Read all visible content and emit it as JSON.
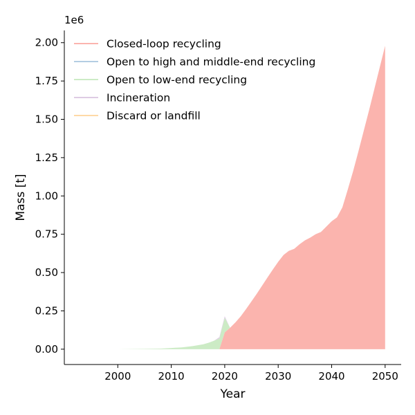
{
  "chart_data": {
    "type": "area",
    "title": "",
    "xlabel": "Year",
    "ylabel": "Mass [t]",
    "y_offset_label": "1e6",
    "xlim": [
      1990,
      2053
    ],
    "ylim": [
      -100000,
      2080000
    ],
    "x_ticks": [
      2000,
      2010,
      2020,
      2030,
      2040,
      2050
    ],
    "x_tick_labels": [
      "2000",
      "2010",
      "2020",
      "2030",
      "2040",
      "2050"
    ],
    "y_ticks": [
      0,
      250000,
      500000,
      750000,
      1000000,
      1250000,
      1500000,
      1750000,
      2000000
    ],
    "y_tick_labels": [
      "0.00",
      "0.25",
      "0.50",
      "0.75",
      "1.00",
      "1.25",
      "1.50",
      "1.75",
      "2.00"
    ],
    "grid": false,
    "legend_position": "top-left",
    "stacked": true,
    "x": [
      1994,
      2000,
      2005,
      2008,
      2010,
      2012,
      2014,
      2016,
      2017,
      2018,
      2019,
      2020,
      2021,
      2022,
      2023,
      2024,
      2025,
      2026,
      2027,
      2028,
      2029,
      2030,
      2031,
      2032,
      2033,
      2034,
      2035,
      2036,
      2037,
      2038,
      2039,
      2040,
      2041,
      2042,
      2043,
      2044,
      2045,
      2046,
      2047,
      2048,
      2049,
      2050
    ],
    "series": [
      {
        "name": "Closed-loop recycling",
        "color": "#fbb4ae",
        "values": [
          0,
          0,
          0,
          0,
          0,
          0,
          0,
          0,
          0,
          0,
          0,
          110000,
          140000,
          175000,
          215000,
          262000,
          312000,
          362000,
          415000,
          468000,
          520000,
          570000,
          615000,
          642000,
          655000,
          685000,
          710000,
          728000,
          750000,
          765000,
          800000,
          835000,
          860000,
          925000,
          1040000,
          1160000,
          1290000,
          1425000,
          1560000,
          1700000,
          1840000,
          1980000
        ]
      },
      {
        "name": "Open to high and middle-end recycling",
        "color": "#b3cde3",
        "values": [
          0,
          0,
          0,
          0,
          0,
          0,
          0,
          0,
          0,
          0,
          0,
          0,
          0,
          0,
          0,
          0,
          0,
          0,
          0,
          0,
          0,
          0,
          0,
          0,
          0,
          0,
          0,
          0,
          0,
          0,
          0,
          0,
          0,
          0,
          0,
          0,
          0,
          0,
          0,
          0,
          0,
          0
        ]
      },
      {
        "name": "Open to low-end recycling",
        "color": "#ccebc5",
        "values": [
          0,
          0,
          2000,
          4000,
          8000,
          12000,
          20000,
          32000,
          42000,
          55000,
          70000,
          95000,
          0,
          0,
          0,
          0,
          0,
          0,
          0,
          0,
          0,
          0,
          0,
          0,
          0,
          0,
          0,
          0,
          0,
          0,
          0,
          0,
          0,
          0,
          0,
          0,
          0,
          0,
          0,
          0,
          0,
          0
        ]
      },
      {
        "name": "Incineration",
        "color": "#decbe4",
        "values": [
          0,
          0,
          0,
          0,
          0,
          0,
          0,
          0,
          0,
          0,
          8000,
          10000,
          0,
          0,
          0,
          0,
          0,
          0,
          0,
          0,
          0,
          0,
          0,
          0,
          0,
          0,
          0,
          0,
          0,
          0,
          0,
          0,
          0,
          0,
          0,
          0,
          0,
          0,
          0,
          0,
          0,
          0
        ]
      },
      {
        "name": "Discard or landfill",
        "color": "#fed9a6",
        "values": [
          0,
          0,
          0,
          0,
          0,
          0,
          0,
          0,
          0,
          0,
          0,
          0,
          0,
          0,
          0,
          0,
          0,
          0,
          0,
          0,
          0,
          0,
          0,
          0,
          0,
          0,
          0,
          0,
          0,
          0,
          0,
          0,
          0,
          0,
          0,
          0,
          0,
          0,
          0,
          0,
          0,
          0
        ]
      }
    ]
  }
}
